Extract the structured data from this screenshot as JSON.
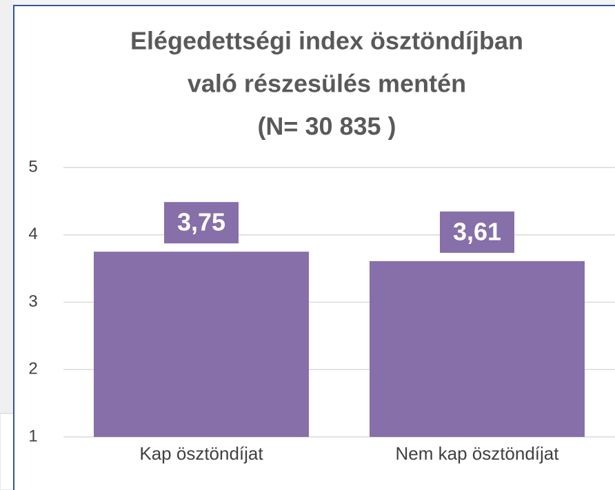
{
  "chart_data": {
    "type": "bar",
    "title": [
      "Elégedettségi index ösztöndíjban",
      "való részesülés mentén",
      "(N= 30 835 )"
    ],
    "categories": [
      "Kap ösztöndíjat",
      "Nem kap ösztöndíjat"
    ],
    "values": [
      3.75,
      3.61
    ],
    "value_labels": [
      "3,75",
      "3,61"
    ],
    "color": "#876fa9",
    "ylim": [
      1,
      5
    ],
    "yticks": [
      1,
      2,
      3,
      4,
      5
    ],
    "grid": true
  }
}
